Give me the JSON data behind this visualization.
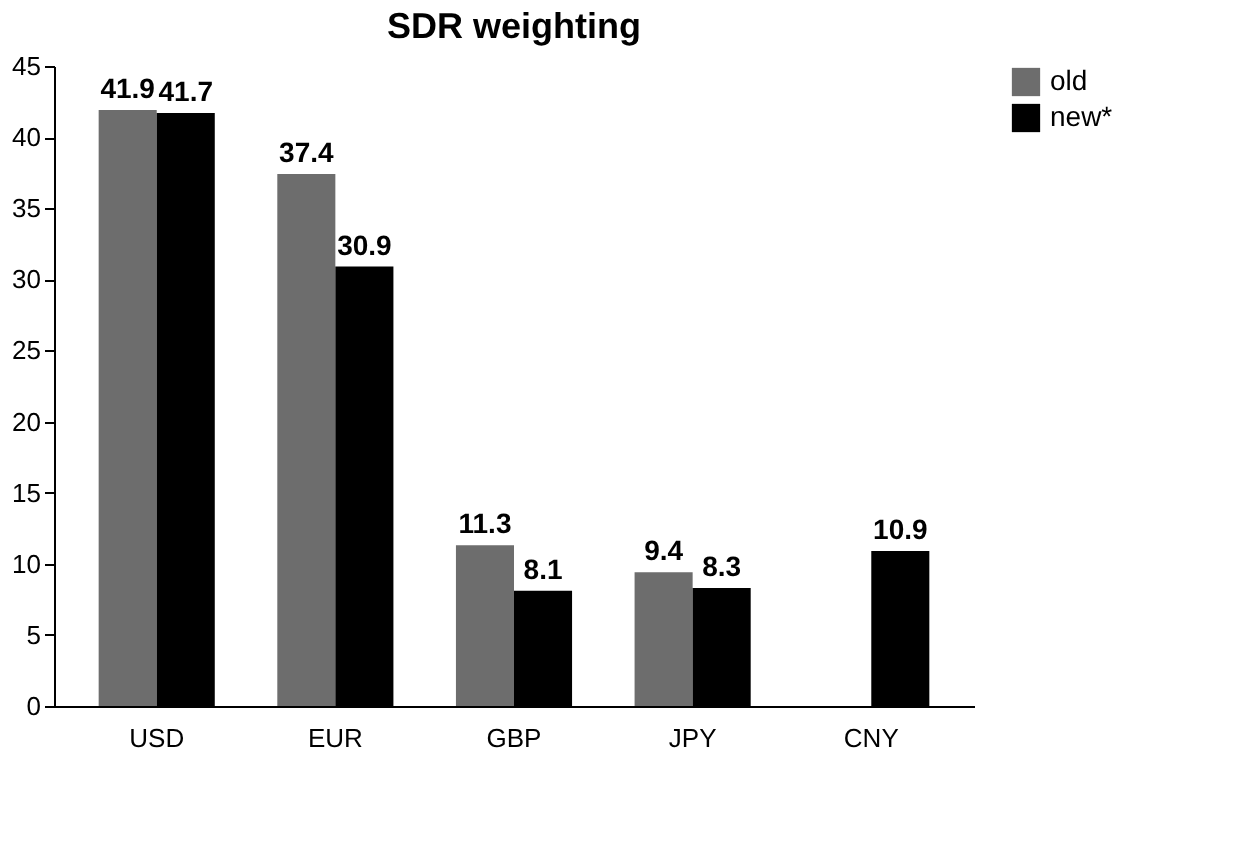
{
  "chart_data": {
    "type": "bar",
    "title": "SDR weighting",
    "categories": [
      "USD",
      "EUR",
      "GBP",
      "JPY",
      "CNY"
    ],
    "series": [
      {
        "name": "old",
        "color": "#6d6d6d",
        "values": [
          41.9,
          37.4,
          11.3,
          9.4,
          null
        ]
      },
      {
        "name": "new*",
        "color": "#000000",
        "values": [
          41.7,
          30.9,
          8.1,
          8.3,
          10.9
        ]
      }
    ],
    "ylim": [
      0,
      45
    ],
    "yticks": [
      0,
      5,
      10,
      15,
      20,
      25,
      30,
      35,
      40,
      45
    ],
    "grid": false,
    "legend": "right",
    "data_labels": true
  }
}
